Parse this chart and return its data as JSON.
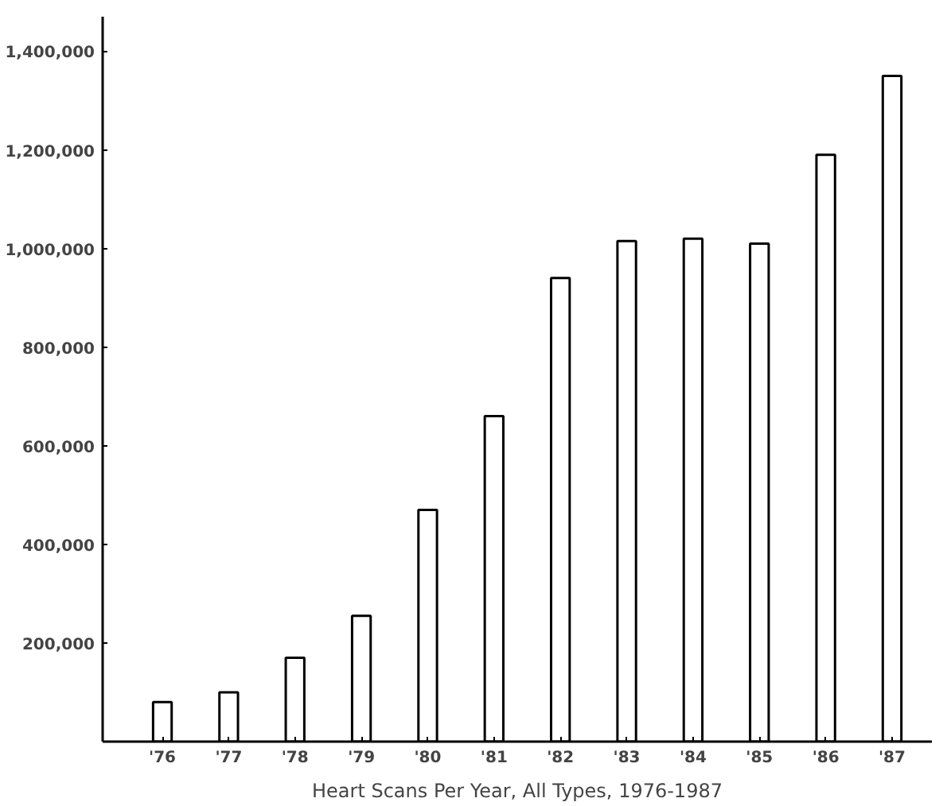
{
  "chart_data": {
    "type": "bar",
    "xlabel": "Heart Scans Per Year, All Types, 1976-1987",
    "categories": [
      "'76",
      "'77",
      "'78",
      "'79",
      "'80",
      "'81",
      "'82",
      "'83",
      "'84",
      "'85",
      "'86",
      "'87"
    ],
    "values": [
      80000,
      100000,
      170000,
      255000,
      470000,
      660000,
      940000,
      1015000,
      1020000,
      1010000,
      1190000,
      1350000
    ],
    "color": "#ffffff",
    "ylim": [
      0,
      1470000
    ],
    "yticks": [
      {
        "value": 200000,
        "label": "200,000"
      },
      {
        "value": 400000,
        "label": "400,000"
      },
      {
        "value": 600000,
        "label": "600,000"
      },
      {
        "value": 800000,
        "label": "800,000"
      },
      {
        "value": 1000000,
        "label": "1,000,000"
      },
      {
        "value": 1200000,
        "label": "1,200,000"
      },
      {
        "value": 1400000,
        "label": "1,400,000"
      }
    ],
    "grid": false
  }
}
